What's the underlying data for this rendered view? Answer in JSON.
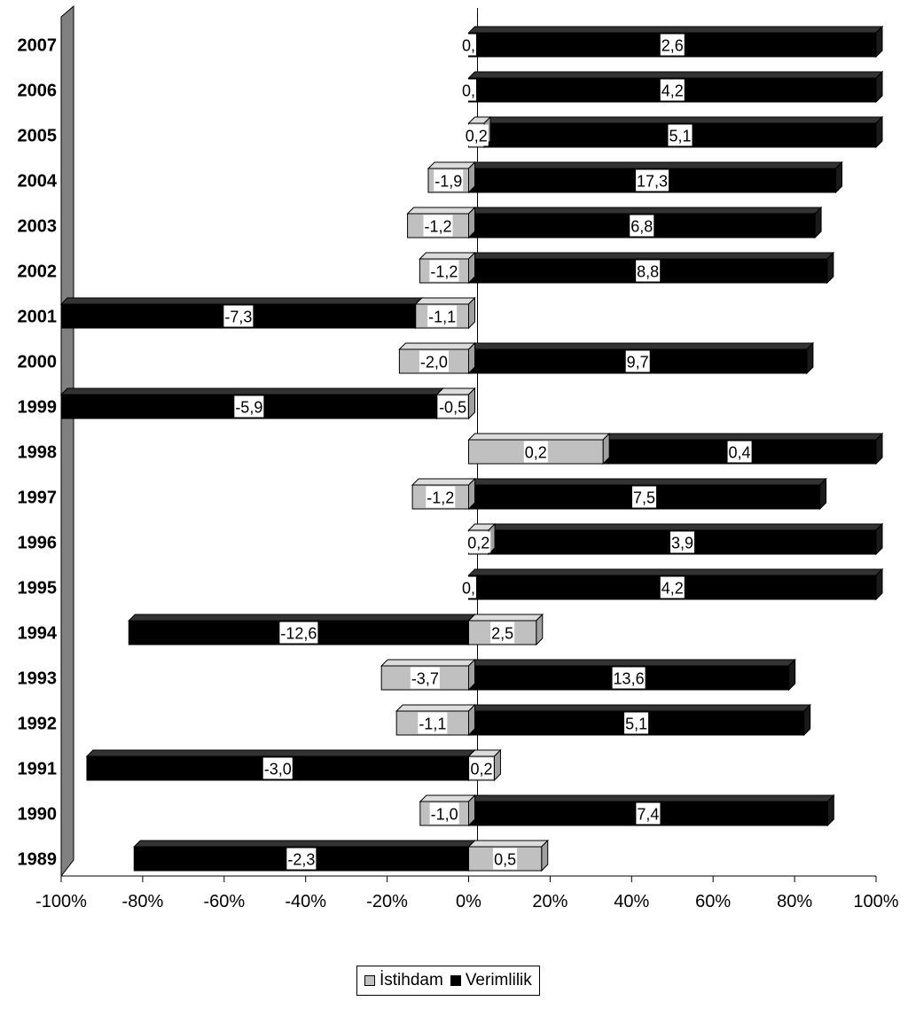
{
  "chart_data": {
    "type": "bar",
    "orientation": "horizontal",
    "stacked": "percent",
    "categories": [
      "2007",
      "2006",
      "2005",
      "2004",
      "2003",
      "2002",
      "2001",
      "2000",
      "1999",
      "1998",
      "1997",
      "1996",
      "1995",
      "1994",
      "1993",
      "1992",
      "1991",
      "1990",
      "1989"
    ],
    "series": [
      {
        "name": "İstihdam",
        "color": "#c0c0c0",
        "values": [
          0.0,
          0.0,
          0.2,
          -1.9,
          -1.2,
          -1.2,
          -1.1,
          -2.0,
          -0.5,
          0.2,
          -1.2,
          0.2,
          0.0,
          2.5,
          -3.7,
          -1.1,
          0.2,
          -1.0,
          0.5
        ],
        "labels": [
          "0,",
          "0,",
          "0,2",
          "-1,9",
          "-1,2",
          "-1,2",
          "-1,1",
          "-2,0",
          "-0,5",
          "0,2",
          "-1,2",
          "0,2",
          "0,",
          "2,5",
          "-3,7",
          "-1,1",
          "0,2",
          "-1,0",
          "0,5"
        ],
        "percent": [
          0,
          0,
          3.8,
          -9.9,
          -15,
          -12,
          -13,
          -17,
          -7.8,
          33,
          -13.8,
          4.9,
          0,
          16.6,
          -21.4,
          -17.7,
          6.3,
          -11.9,
          17.9
        ]
      },
      {
        "name": "Verimlilik",
        "color": "#000000",
        "values": [
          2.6,
          4.2,
          5.1,
          17.3,
          6.8,
          8.8,
          -7.3,
          9.7,
          -5.9,
          0.4,
          7.5,
          3.9,
          4.2,
          -12.6,
          13.6,
          5.1,
          -3.0,
          7.4,
          -2.3
        ],
        "labels": [
          "2,6",
          "4,2",
          "5,1",
          "17,3",
          "6,8",
          "8,8",
          "-7,3",
          "9,7",
          "-5,9",
          "0,4",
          "7,5",
          "3,9",
          "4,2",
          "-12,6",
          "13,6",
          "5,1",
          "-3,0",
          "7,4",
          "-2,3"
        ],
        "percent": [
          100,
          100,
          96.2,
          90.1,
          85,
          88,
          -87,
          83,
          -92.2,
          67,
          86.2,
          95.1,
          100,
          -83.4,
          78.6,
          82.3,
          -93.7,
          88.1,
          -82.1
        ]
      }
    ],
    "xlim": [
      -100,
      100
    ],
    "x_ticks": [
      "-100%",
      "-80%",
      "-60%",
      "-40%",
      "-20%",
      "0%",
      "20%",
      "40%",
      "60%",
      "80%",
      "100%"
    ],
    "x_tick_values": [
      -100,
      -80,
      -60,
      -40,
      -20,
      0,
      20,
      40,
      60,
      80,
      100
    ],
    "title": "",
    "xlabel": "",
    "ylabel": "",
    "legend_position": "bottom",
    "grid": false
  }
}
